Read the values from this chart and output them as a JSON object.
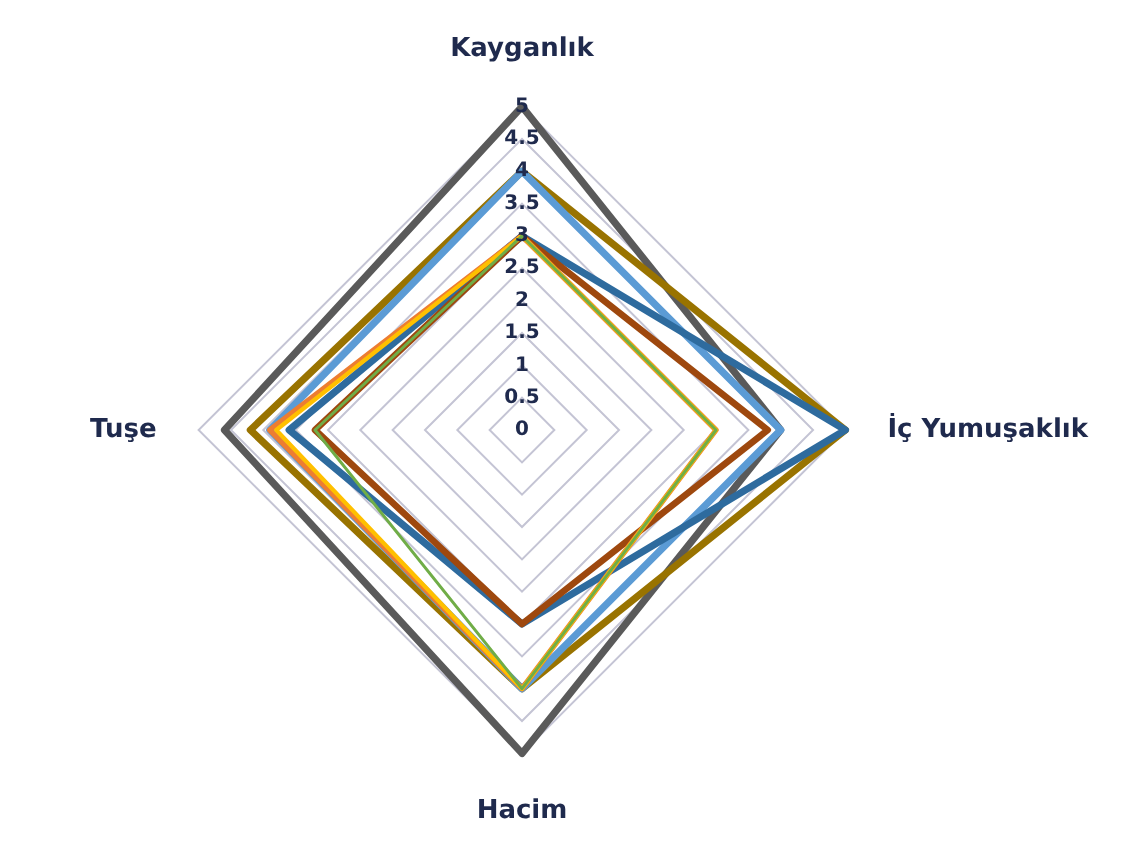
{
  "chart_data": {
    "type": "radar",
    "categories": [
      "Kayganlık",
      "İç Yumuşaklık",
      "Hacim",
      "Tuşe"
    ],
    "series": [
      {
        "color": "#5a5a5a",
        "values": [
          5,
          4,
          5,
          4.6
        ]
      },
      {
        "color": "#997300",
        "values": [
          4,
          5,
          4,
          4.2
        ]
      },
      {
        "color": "#5b9bd5",
        "values": [
          4,
          4,
          4,
          3.9
        ]
      },
      {
        "color": "#2e6b9e",
        "values": [
          3,
          5,
          3,
          3.6
        ]
      },
      {
        "color": "#9e480e",
        "values": [
          3,
          3.8,
          3,
          3.2
        ]
      },
      {
        "color": "#ed7d31",
        "values": [
          3,
          3,
          4,
          3.9
        ]
      },
      {
        "color": "#ffc000",
        "values": [
          3,
          3,
          4,
          3.8
        ]
      },
      {
        "color": "#70ad47",
        "values": [
          3,
          3,
          4,
          3.2
        ]
      }
    ],
    "ylim": [
      0,
      5
    ],
    "yticks": [
      0,
      0.5,
      1,
      1.5,
      2,
      2.5,
      3,
      3.5,
      4,
      4.5,
      5
    ],
    "grid": true,
    "legend": false,
    "marker": "none",
    "line_style": "solid"
  }
}
